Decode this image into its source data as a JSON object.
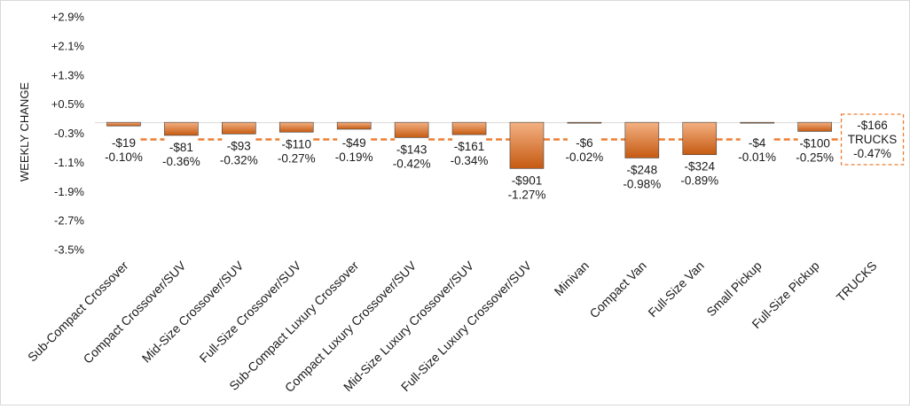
{
  "chart_data": {
    "type": "bar",
    "ylabel": "WEEKLY CHANGE",
    "ylim": [
      -3.5,
      2.9
    ],
    "yticks": [
      "+2.9%",
      "+2.1%",
      "+1.3%",
      "+0.5%",
      "-0.3%",
      "-1.1%",
      "-1.9%",
      "-2.7%",
      "-3.5%"
    ],
    "ytick_values": [
      2.9,
      2.1,
      1.3,
      0.5,
      -0.3,
      -1.1,
      -1.9,
      -2.7,
      -3.5
    ],
    "categories": [
      "Sub-Compact Crossover",
      "Compact Crossover/SUV",
      "Mid-Size Crossover/SUV",
      "Full-Size Crossover/SUV",
      "Sub-Compact Luxury Crossover",
      "Compact Luxury Crossover/SUV",
      "Mid-Size Luxury Crossover/SUV",
      "Full-Size Luxury Crossover/SUV",
      "Minivan",
      "Compact Van",
      "Full-Size Van",
      "Small Pickup",
      "Full-Size Pickup",
      "TRUCKS"
    ],
    "values": [
      -0.1,
      -0.36,
      -0.32,
      -0.27,
      -0.19,
      -0.42,
      -0.34,
      -1.27,
      -0.02,
      -0.98,
      -0.89,
      -0.01,
      -0.25,
      null
    ],
    "dollar_labels": [
      "-$19",
      "-$81",
      "-$93",
      "-$110",
      "-$49",
      "-$143",
      "-$161",
      "-$901",
      "-$6",
      "-$248",
      "-$324",
      "-$4",
      "-$100",
      "-$166"
    ],
    "percent_labels": [
      "-0.10%",
      "-0.36%",
      "-0.32%",
      "-0.27%",
      "-0.19%",
      "-0.42%",
      "-0.34%",
      "-1.27%",
      "-0.02%",
      "-0.98%",
      "-0.89%",
      "-0.01%",
      "-0.25%",
      "-0.47%"
    ],
    "average": {
      "label": "TRUCKS",
      "value": -0.47
    },
    "colors": {
      "bar_top": "#f4b183",
      "bar_bottom": "#c55a11",
      "bar_edge": "#404040",
      "average_line": "#ed7d31",
      "axis": "#d9d9d9"
    },
    "grid": false,
    "legend": "none"
  }
}
